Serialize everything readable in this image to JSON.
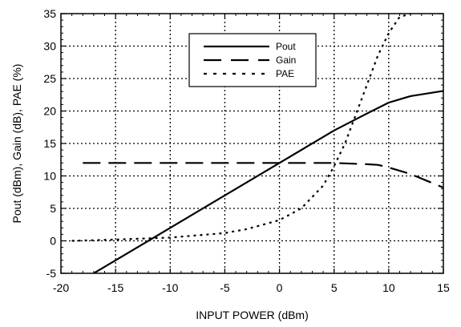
{
  "chart_data": {
    "type": "line",
    "title": "",
    "xlabel": "INPUT  POWER (dBm)",
    "ylabel": "Pout (dBm), Gain (dB), PAE (%)",
    "xlim": [
      -20,
      15
    ],
    "ylim": [
      -5,
      35
    ],
    "xticks": [
      -20,
      -15,
      -10,
      -5,
      0,
      5,
      10,
      15
    ],
    "yticks": [
      -5,
      0,
      5,
      10,
      15,
      20,
      25,
      30,
      35
    ],
    "grid": true,
    "legend_position": "top-center",
    "series": [
      {
        "name": "Pout",
        "style": "solid",
        "color": "#000000",
        "x": [
          -17,
          -15,
          -10,
          -5,
          0,
          5,
          8,
          10,
          12,
          15
        ],
        "y": [
          -5,
          -3,
          2,
          7,
          12,
          17,
          19.6,
          21.3,
          22.3,
          23.1
        ]
      },
      {
        "name": "Gain",
        "style": "dashed",
        "color": "#000000",
        "x": [
          -18,
          -15,
          -10,
          -5,
          0,
          5,
          8,
          9,
          10,
          12,
          15
        ],
        "y": [
          12,
          12,
          12,
          12,
          12,
          12,
          11.8,
          11.7,
          11.3,
          10.3,
          8.2
        ]
      },
      {
        "name": "PAE",
        "style": "dotted",
        "color": "#000000",
        "x": [
          -19,
          -15,
          -10,
          -5,
          -3,
          0,
          2,
          4,
          5,
          6,
          7,
          8,
          9,
          10,
          11,
          12
        ],
        "y": [
          0,
          0.2,
          0.5,
          1.2,
          1.8,
          3.2,
          5,
          8.5,
          11.5,
          15,
          19.5,
          24,
          28.5,
          32,
          34.5,
          35
        ]
      }
    ]
  }
}
